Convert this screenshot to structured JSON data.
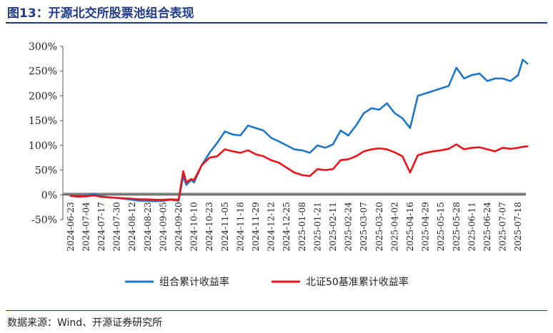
{
  "header": {
    "title": "图13：开源北交所股票池组合表现"
  },
  "footer": {
    "source": "数据来源：Wind、开源证券研究所"
  },
  "chart_data": {
    "type": "line",
    "title": "开源北交所股票池组合表现",
    "xlabel": "",
    "ylabel": "",
    "ylim": [
      -0.5,
      3.0
    ],
    "y_ticks": [
      -0.5,
      0,
      0.5,
      1.0,
      1.5,
      2.0,
      2.5,
      3.0
    ],
    "y_tick_labels": [
      "-50%",
      "0%",
      "50%",
      "100%",
      "150%",
      "200%",
      "250%",
      "300%"
    ],
    "legend_position": "bottom",
    "grid": false,
    "x_tick_labels": [
      "2024-06-23",
      "2024-07-04",
      "2024-07-17",
      "2024-07-30",
      "2024-08-12",
      "2024-08-23",
      "2024-09-05",
      "2024-09-20",
      "2024-10-10",
      "2024-10-23",
      "2024-11-05",
      "2024-11-18",
      "2024-11-29",
      "2024-12-12",
      "2024-12-25",
      "2025-01-08",
      "2025-01-21",
      "2025-02-11",
      "2025-02-24",
      "2025-03-07",
      "2025-03-20",
      "2025-04-02",
      "2025-04-16",
      "2025-04-29",
      "2025-05-15",
      "2025-05-28",
      "2025-06-11",
      "2025-06-24",
      "2025-07-07",
      "2025-07-18"
    ],
    "series": [
      {
        "name": "组合累计收益率",
        "color": "#1f77c4",
        "x": [
          0,
          0.5,
          1,
          1.5,
          2,
          2.5,
          3,
          3.5,
          4,
          4.5,
          5,
          5.5,
          6,
          6.5,
          7,
          7.3,
          7.5,
          7.8,
          8,
          8.5,
          9,
          9.5,
          10,
          10.5,
          11,
          11.5,
          12,
          12.5,
          13,
          13.5,
          14,
          14.5,
          15,
          15.5,
          16,
          16.5,
          17,
          17.5,
          18,
          18.5,
          19,
          19.5,
          20,
          20.5,
          21,
          21.5,
          22,
          22.5,
          23,
          23.5,
          24,
          24.5,
          25,
          25.5,
          26,
          26.5,
          27,
          27.5,
          28,
          28.5,
          29,
          29.3,
          29.6
        ],
        "values": [
          -0.02,
          -0.04,
          -0.02,
          0.02,
          -0.03,
          -0.05,
          -0.06,
          -0.08,
          -0.1,
          -0.12,
          -0.12,
          -0.13,
          -0.12,
          -0.1,
          -0.12,
          0.38,
          0.2,
          0.3,
          0.25,
          0.6,
          0.85,
          1.05,
          1.28,
          1.22,
          1.2,
          1.4,
          1.35,
          1.3,
          1.15,
          1.08,
          1.0,
          0.92,
          0.9,
          0.85,
          1.0,
          0.95,
          1.02,
          1.3,
          1.2,
          1.4,
          1.65,
          1.75,
          1.72,
          1.85,
          1.65,
          1.55,
          1.35,
          2.0,
          2.05,
          2.1,
          2.15,
          2.2,
          2.57,
          2.35,
          2.42,
          2.45,
          2.3,
          2.35,
          2.35,
          2.3,
          2.42,
          2.73,
          2.65
        ]
      },
      {
        "name": "北证50基准累计收益率",
        "color": "#e8141b",
        "x": [
          0,
          0.5,
          1,
          1.5,
          2,
          2.5,
          3,
          3.5,
          4,
          4.5,
          5,
          5.5,
          6,
          6.5,
          7,
          7.3,
          7.5,
          7.8,
          8,
          8.5,
          9,
          9.5,
          10,
          10.5,
          11,
          11.5,
          12,
          12.5,
          13,
          13.5,
          14,
          14.5,
          15,
          15.5,
          16,
          16.5,
          17,
          17.5,
          18,
          18.5,
          19,
          19.5,
          20,
          20.5,
          21,
          21.5,
          22,
          22.5,
          23,
          23.5,
          24,
          24.5,
          25,
          25.5,
          26,
          26.5,
          27,
          27.5,
          28,
          28.5,
          29,
          29.3,
          29.6
        ],
        "values": [
          -0.02,
          -0.03,
          -0.03,
          -0.01,
          -0.04,
          -0.05,
          -0.06,
          -0.07,
          -0.08,
          -0.09,
          -0.09,
          -0.1,
          -0.1,
          -0.09,
          -0.1,
          0.48,
          0.25,
          0.32,
          0.3,
          0.6,
          0.75,
          0.78,
          0.92,
          0.88,
          0.85,
          0.9,
          0.82,
          0.78,
          0.7,
          0.65,
          0.55,
          0.45,
          0.4,
          0.38,
          0.52,
          0.5,
          0.52,
          0.7,
          0.72,
          0.78,
          0.88,
          0.92,
          0.94,
          0.92,
          0.86,
          0.78,
          0.45,
          0.8,
          0.85,
          0.88,
          0.9,
          0.93,
          1.02,
          0.92,
          0.95,
          0.96,
          0.92,
          0.88,
          0.95,
          0.93,
          0.95,
          0.97,
          0.98
        ]
      }
    ]
  }
}
